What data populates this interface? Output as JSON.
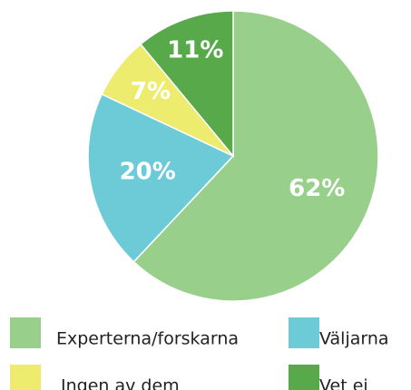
{
  "chart_data": {
    "type": "pie",
    "categories": [
      "Experterna/forskarna",
      "Väljarna",
      "Ingen av dem",
      "Vet ej"
    ],
    "values": [
      62,
      20,
      7,
      11
    ],
    "value_labels": [
      "62%",
      "20%",
      "7%",
      "11%"
    ],
    "colors": [
      "#98cf8a",
      "#6dcbd7",
      "#eeec6f",
      "#58a94a"
    ],
    "legend": "bottom"
  }
}
